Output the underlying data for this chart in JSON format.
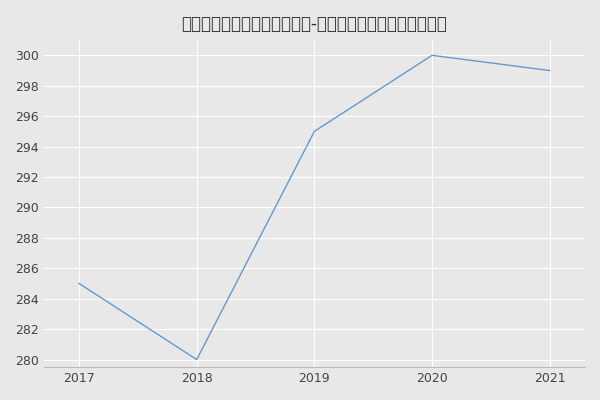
{
  "title": "合肥工业大学科学技术哲学（-历年复试）研究生录取分数线",
  "x": [
    2017,
    2018,
    2019,
    2020,
    2021
  ],
  "y": [
    285,
    280,
    295,
    300,
    299
  ],
  "line_color": "#6699cc",
  "fig_bg_color": "#e8e8e8",
  "plot_bg_color": "#e8e8e8",
  "grid_color": "#ffffff",
  "xlim": [
    2016.7,
    2021.3
  ],
  "ylim": [
    279.5,
    301.0
  ],
  "yticks": [
    280,
    282,
    284,
    286,
    288,
    290,
    292,
    294,
    296,
    298,
    300
  ],
  "xticks": [
    2017,
    2018,
    2019,
    2020,
    2021
  ],
  "title_fontsize": 12,
  "tick_fontsize": 9
}
